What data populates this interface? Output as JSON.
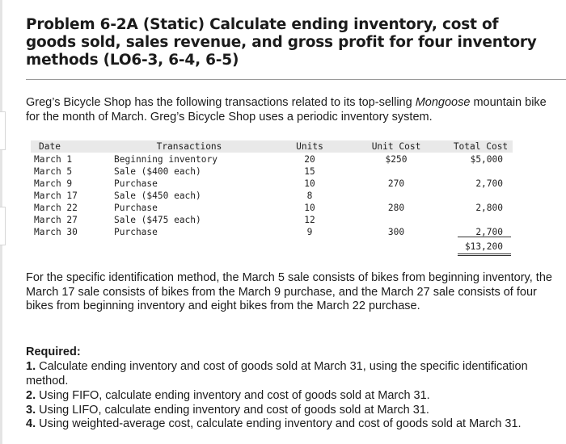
{
  "title": "Problem 6-2A (Static) Calculate ending inventory, cost of goods sold, sales revenue, and gross profit for four inventory methods (LO6-3, 6-4, 6-5)",
  "intro": {
    "before": "Greg’s Bicycle Shop has the following transactions related to its top-selling ",
    "italic": "Mongoose",
    "after": " mountain bike for the month of March. Greg’s Bicycle Shop uses a periodic inventory system."
  },
  "table": {
    "headers": {
      "date": "Date",
      "transactions": "Transactions",
      "units": "Units",
      "unit_cost": "Unit Cost",
      "total_cost": "Total Cost"
    },
    "rows": [
      {
        "date": "March 1",
        "transactions": "Beginning inventory",
        "units": "20",
        "unit_cost": "$250",
        "total_cost": "$5,000"
      },
      {
        "date": "March 5",
        "transactions": "Sale ($400 each)",
        "units": "15",
        "unit_cost": "",
        "total_cost": ""
      },
      {
        "date": "March 9",
        "transactions": "Purchase",
        "units": "10",
        "unit_cost": "270",
        "total_cost": "2,700"
      },
      {
        "date": "March 17",
        "transactions": "Sale ($450 each)",
        "units": "8",
        "unit_cost": "",
        "total_cost": ""
      },
      {
        "date": "March 22",
        "transactions": "Purchase",
        "units": "10",
        "unit_cost": "280",
        "total_cost": "2,800"
      },
      {
        "date": "March 27",
        "transactions": "Sale ($475 each)",
        "units": "12",
        "unit_cost": "",
        "total_cost": ""
      },
      {
        "date": "March 30",
        "transactions": "Purchase",
        "units": "9",
        "unit_cost": "300",
        "total_cost": "2,700"
      }
    ],
    "total": "$13,200"
  },
  "specific_paragraph": "For the specific identification method, the March 5 sale consists of bikes from beginning inventory, the March 17 sale consists of bikes from the March 9 purchase, and the March 27 sale consists of four bikes from beginning inventory and eight bikes from the March 22 purchase.",
  "required": {
    "heading": "Required:",
    "items": [
      {
        "num": "1.",
        "text": " Calculate ending inventory and cost of goods sold at March 31, using the specific identification method."
      },
      {
        "num": "2.",
        "text": " Using FIFO, calculate ending inventory and cost of goods sold at March 31."
      },
      {
        "num": "3.",
        "text": " Using LIFO, calculate ending inventory and cost of goods sold at March 31."
      },
      {
        "num": "4.",
        "text": " Using weighted-average cost, calculate ending inventory and cost of goods sold at March 31."
      }
    ]
  }
}
